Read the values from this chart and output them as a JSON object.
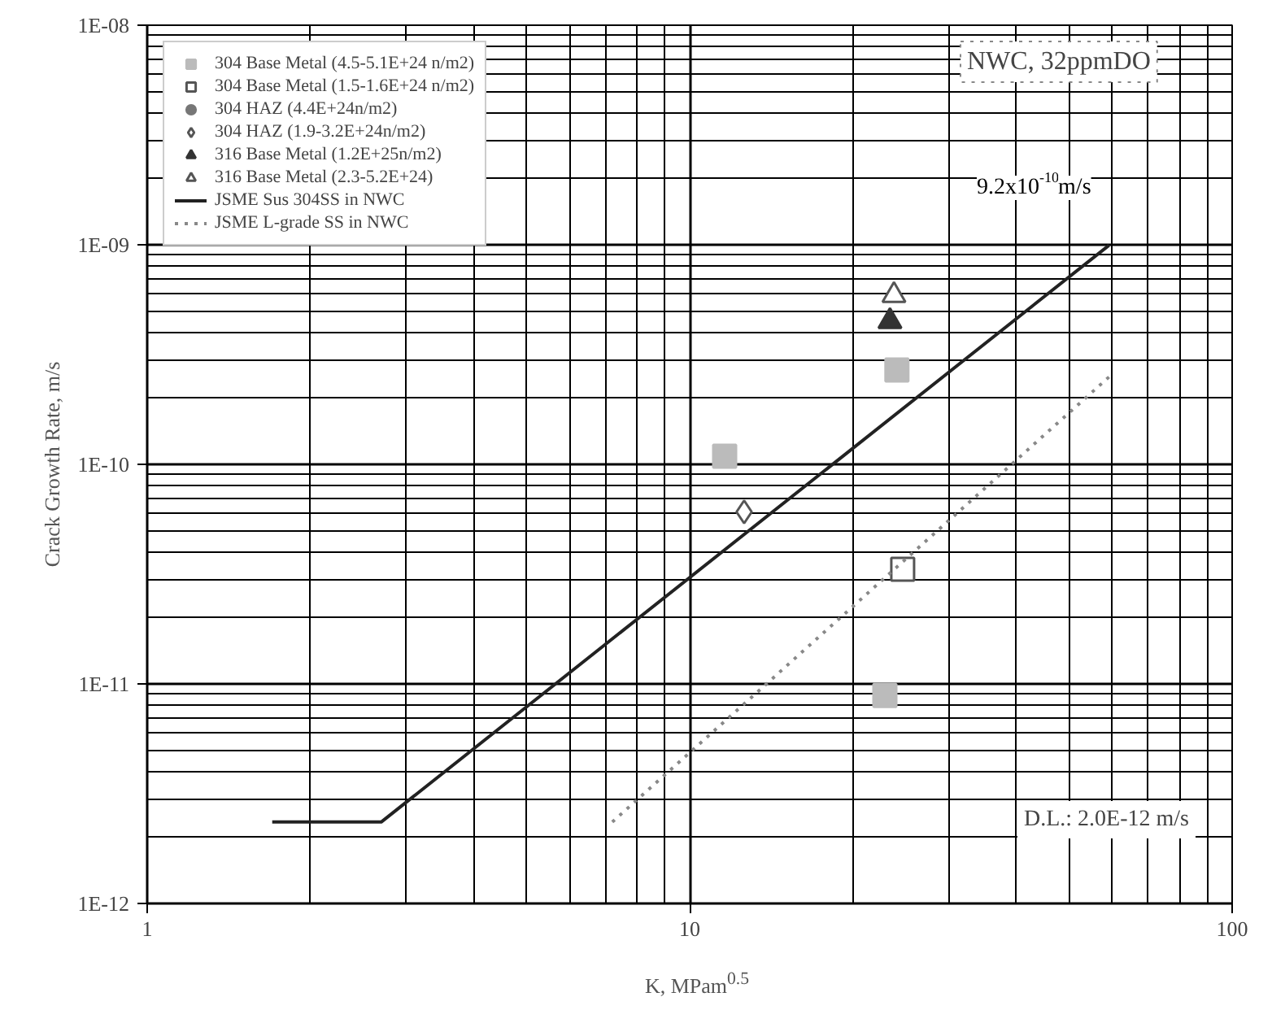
{
  "chart_data": {
    "type": "scatter",
    "xlabel": "K, MPam$^{0.5}$",
    "ylabel": "Crack Growth Rate, m/s",
    "log": "xy",
    "grid": true,
    "legend": "top left",
    "xlim": [
      1,
      100
    ],
    "xticks": [
      1,
      10,
      100
    ],
    "ylim": [
      1e-12,
      1e-08
    ],
    "yticks": [
      {
        "value": 1e-12,
        "label": "1E-12"
      },
      {
        "value": 1e-11,
        "label": "1E-11"
      },
      {
        "value": 1e-10,
        "label": "1E-10"
      },
      {
        "value": 1e-09,
        "label": "1E-09"
      },
      {
        "value": 1e-08,
        "label": "1E-08"
      }
    ],
    "annotations": [
      "NWC, 32ppmDO",
      "9.2x10$^{-10}$m/s",
      "D.L.: 2.0E-12 m/s"
    ],
    "series": [
      {
        "name": "304 Base Metal (4.5-5.1E+24 n/m2)",
        "color": "#bbbbbb",
        "marker": "square",
        "x": [
          11.6,
          24.1,
          22.9
        ],
        "values": [
          1.09e-10,
          2.69e-10,
          8.85e-12
        ]
      },
      {
        "name": "304 Base Metal (1.5-1.6E+24 n/m2)",
        "color": "#ffffff",
        "marker": "square",
        "x": [
          24.7
        ],
        "values": [
          3.33e-11
        ]
      },
      {
        "name": "304 HAZ (4.4E+24n/m2)",
        "color": "#777777",
        "marker": "circle"
      },
      {
        "name": "304 HAZ (1.9-3.2E+24n/m2)",
        "color": "#ffffff",
        "marker": "diamond",
        "x": [
          12.6
        ],
        "values": [
          6.07e-11
        ]
      },
      {
        "name": "316 Base Metal (1.2E+25n/m2)",
        "color": "#333333",
        "marker": "triangle",
        "x": [
          23.4
        ],
        "values": [
          4.48e-10
        ]
      },
      {
        "name": "316 Base Metal (2.3-5.2E+24)",
        "color": "#ffffff",
        "marker": "triangle",
        "x": [
          23.8
        ],
        "values": [
          5.88e-10
        ]
      },
      {
        "name": "JSME Sus 304SS in NWC",
        "type": "line",
        "color": "#222222",
        "line_style": "solid",
        "x": [
          1.7,
          2.7,
          59.3
        ],
        "values": [
          2.35e-12,
          2.35e-12,
          9.95e-10
        ]
      },
      {
        "name": "JSME L-grade SS in NWC",
        "type": "line",
        "color": "#888888",
        "line_style": "dotted",
        "x": [
          7.2,
          59.3
        ],
        "values": [
          2.35e-12,
          2.5e-10
        ]
      }
    ]
  }
}
